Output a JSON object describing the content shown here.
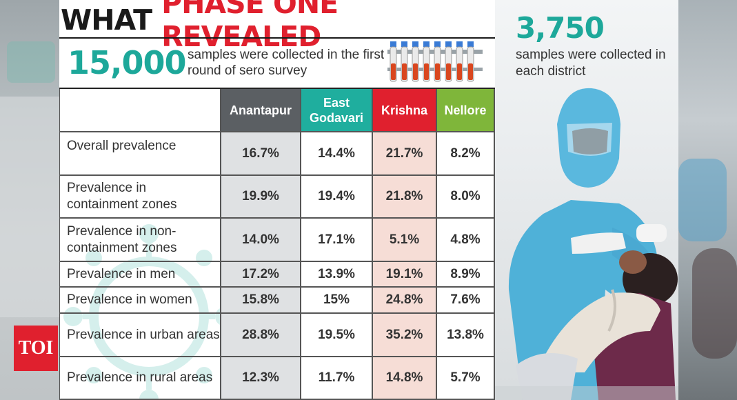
{
  "title": {
    "part1": "WHAT",
    "part2": "PHASE ONE REVEALED"
  },
  "stat_samples": {
    "number": "15,000",
    "text": "samples were collected in the first round of sero survey"
  },
  "stat_district": {
    "number": "3,750",
    "text": "samples were collected in each district"
  },
  "table": {
    "headers": [
      "Anantapur",
      "East Godavari",
      "Krishna",
      "Nellore"
    ],
    "rows": [
      {
        "label": "Overall prevalence",
        "values": [
          "16.7%",
          "14.4%",
          "21.7%",
          "8.2%"
        ]
      },
      {
        "label": "Prevalence in containment zones",
        "values": [
          "19.9%",
          "19.4%",
          "21.8%",
          "8.0%"
        ]
      },
      {
        "label": "Prevalence in non-containment zones",
        "values": [
          "14.0%",
          "17.1%",
          "5.1%",
          "4.8%"
        ]
      },
      {
        "label": "Prevalence in men",
        "values": [
          "17.2%",
          "13.9%",
          "19.1%",
          "8.9%"
        ]
      },
      {
        "label": "Prevalence in women",
        "values": [
          "15.8%",
          "15%",
          "24.8%",
          "7.6%"
        ]
      },
      {
        "label": "Prevalence in urban areas",
        "values": [
          "28.8%",
          "19.5%",
          "35.2%",
          "13.8%"
        ]
      },
      {
        "label": "Prevalence in rural areas",
        "values": [
          "12.3%",
          "11.7%",
          "14.8%",
          "5.7%"
        ]
      }
    ]
  },
  "logo": "TOI",
  "colors": {
    "teal": "#1da89a",
    "red": "#e0202e",
    "green": "#7fb63a",
    "grey": "#5b5f63"
  }
}
